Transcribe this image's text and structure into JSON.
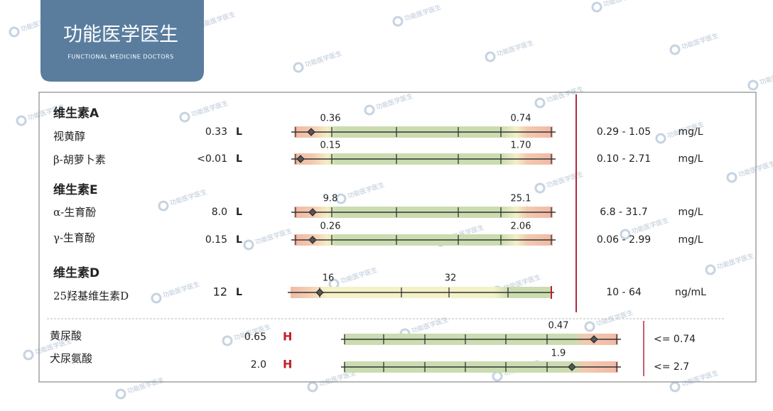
{
  "logo": {
    "title": "功能医学医生",
    "subtitle": "FUNCTIONAL MEDICINE DOCTORS"
  },
  "watermark": "功能医学医生",
  "sections": [
    {
      "title": "维生素A",
      "items": [
        {
          "name": "视黄醇",
          "result": "0.33",
          "flag": "L",
          "low": "0.36",
          "high": "0.74",
          "range": "0.29 - 1.05",
          "unit": "mg/L"
        },
        {
          "name": "β-胡萝卜素",
          "result": "<0.01",
          "flag": "L",
          "low": "0.15",
          "high": "1.70",
          "range": "0.10 - 2.71",
          "unit": "mg/L"
        }
      ]
    },
    {
      "title": "维生素E",
      "items": [
        {
          "name": "α-生育酚",
          "result": "8.0",
          "flag": "L",
          "low": "9.8",
          "high": "25.1",
          "range": "6.8 - 31.7",
          "unit": "mg/L"
        },
        {
          "name": "γ-生育酚",
          "result": "0.15",
          "flag": "L",
          "low": "0.26",
          "high": "2.06",
          "range": "0.06 - 2.99",
          "unit": "mg/L"
        }
      ]
    },
    {
      "title": "维生素D",
      "items": [
        {
          "name": "25羟基维生素D",
          "result": "12",
          "flag": "L",
          "low": "16",
          "high": "32",
          "range": "10 - 64",
          "unit": "ng/mL"
        }
      ]
    }
  ],
  "others": [
    {
      "name": "黄尿酸",
      "result": "0.65",
      "flag": "H",
      "high": "0.47",
      "range": "<= 0.74"
    },
    {
      "name": "犬尿氨酸",
      "result": "2.0",
      "flag": "H",
      "high": "1.9",
      "range": "<= 2.7"
    }
  ]
}
